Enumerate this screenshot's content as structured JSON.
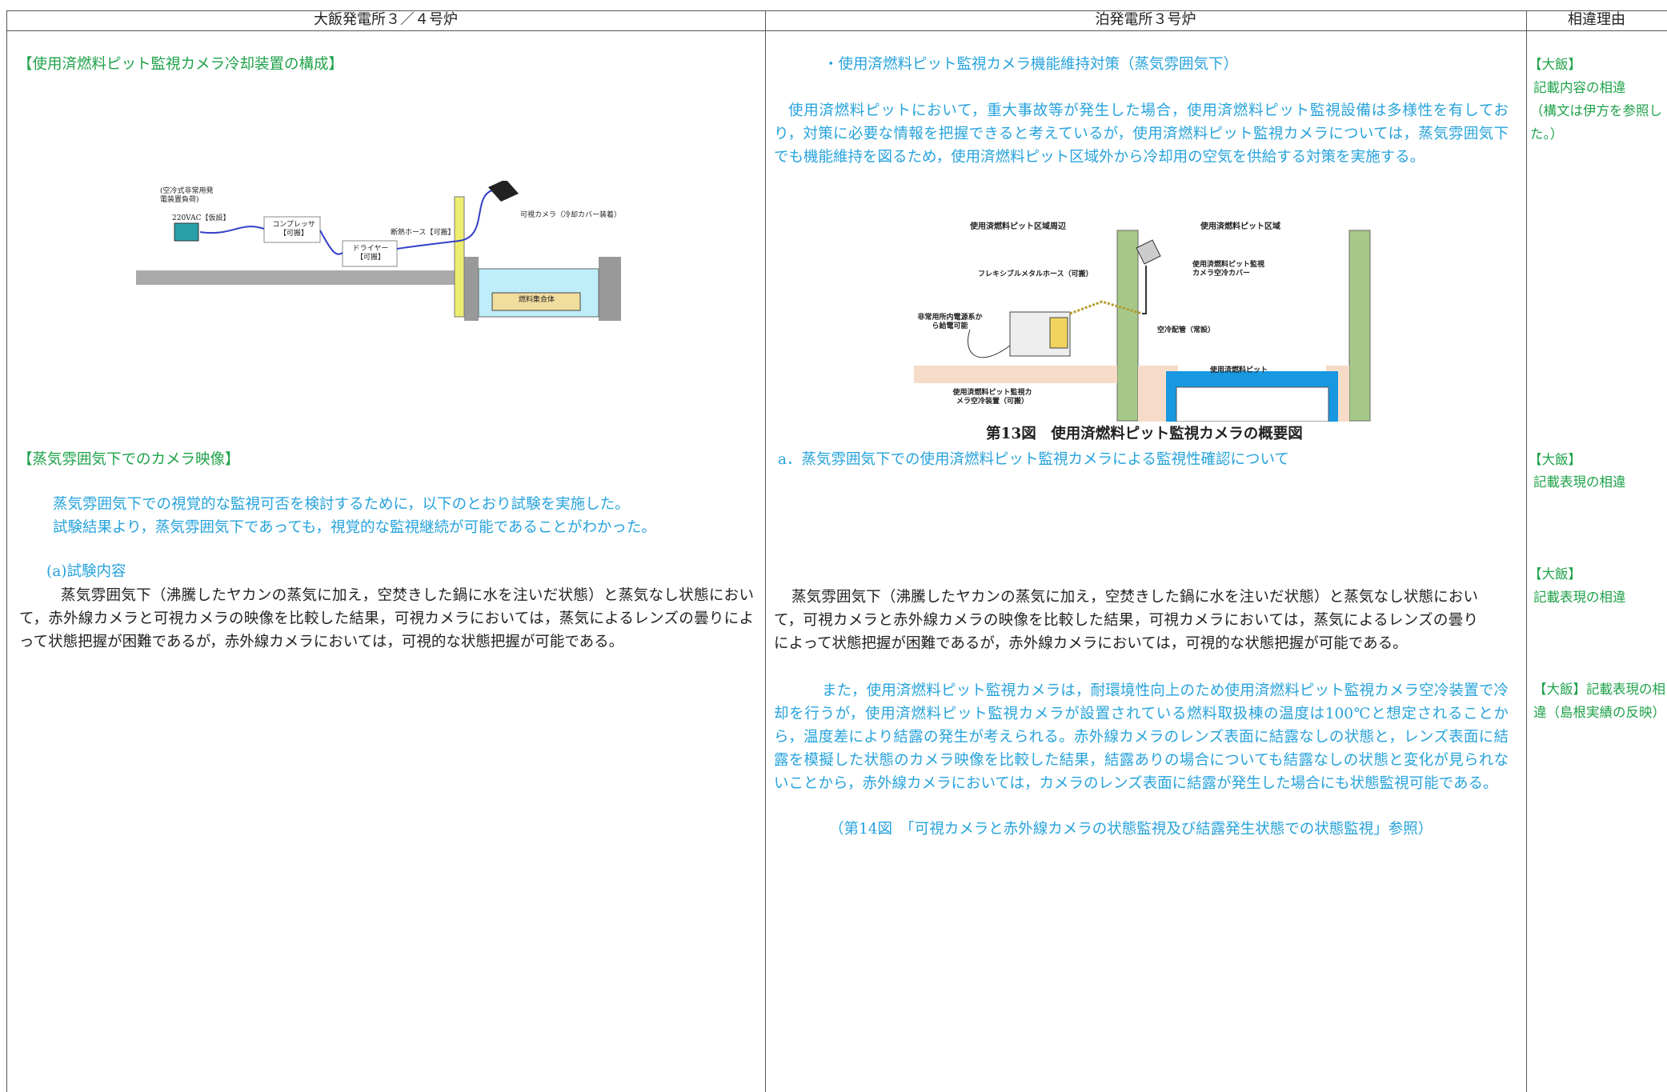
{
  "header": {
    "col1": "大飯発電所３／４号炉",
    "col2": "泊発電所３号炉",
    "col3": "相違理由"
  },
  "left": {
    "heading1": "【使用済燃料ピット監視カメラ冷却装置の構成】",
    "figure": {
      "power": "(空冷式非常用発電装置負荷)",
      "outlet": "220VAC【仮設】",
      "compressor": "コンプレッサ【可搬】",
      "dryer": "ドライヤー【可搬】",
      "hose": "断熱ホース【可搬】",
      "camera": "可視カメラ（冷却カバー装着）",
      "fuel": "燃料集合体"
    },
    "heading2": "【蒸気雰囲気下でのカメラ映像】",
    "intro": [
      "蒸気雰囲気下での視覚的な監視可否を検討するために，以下のとおり試験を実施した。",
      "試験結果より，蒸気雰囲気下であっても，視覚的な監視継続が可能であることがわかった。"
    ],
    "subheading": "(a)試験内容",
    "body": "蒸気雰囲気下（沸騰したヤカンの蒸気に加え，空焚きした鍋に水を注いだ状態）と蒸気なし状態において，赤外線カメラと可視カメラの映像を比較した結果，可視カメラにおいては，蒸気によるレンズの曇りによって状態把握が困難であるが，赤外線カメラにおいては，可視的な状態把握が可能である。"
  },
  "middle": {
    "bullet": "・使用済燃料ピット監視カメラ機能維持対策（蒸気雰囲気下）",
    "para1": "使用済燃料ピットにおいて，重大事故等が発生した場合，使用済燃料ピット監視設備は多様性を有しており，対策に必要な情報を把握できると考えているが，使用済燃料ピット監視カメラについては，蒸気雰囲気下でも機能維持を図るため，使用済燃料ピット区域外から冷却用の空気を供給する対策を実施する。",
    "figure": {
      "area_outside": "使用済燃料ピット区域周辺",
      "area_inside": "使用済燃料ピット区域",
      "cover": "使用済燃料ピット監視カメラ空冷カバー",
      "hose": "フレキシブルメタルホース（可搬）",
      "power": "非常用所内電源系から給電可能",
      "pipe": "空冷配管（常設）",
      "pit": "使用済燃料ピット",
      "device": "使用済燃料ピット監視カメラ空冷装置（可搬）"
    },
    "caption": "第13図　使用済燃料ピット監視カメラの概要図",
    "item_a": "a．蒸気雰囲気下での使用済燃料ピット監視カメラによる監視性確認について",
    "para2": "蒸気雰囲気下（沸騰したヤカンの蒸気に加え，空焚きした鍋に水を注いだ状態）と蒸気なし状態において，可視カメラと赤外線カメラの映像を比較した結果，可視カメラにおいては，蒸気によるレンズの曇りによって状態把握が困難であるが，赤外線カメラにおいては，可視的な状態把握が可能である。",
    "para3": "また，使用済燃料ピット監視カメラは，耐環境性向上のため使用済燃料ピット監視カメラ空冷装置で冷却を行うが，使用済燃料ピット監視カメラが設置されている燃料取扱棟の温度は100℃と想定されることから，温度差により結露の発生が考えられる。赤外線カメラのレンズ表面に結露なしの状態と，レンズ表面に結露を模擬した状態のカメラ映像を比較した結果，結露ありの場合についても結露なしの状態と変化が見られないことから，赤外線カメラにおいては，カメラのレンズ表面に結露が発生した場合にも状態監視可能である。",
    "reference": "（第14図　「可視カメラと赤外線カメラの状態監視及び結露発生状態での状態監視」参照）"
  },
  "right": {
    "note1": {
      "tag": "【大飯】",
      "text": "記載内容の相違",
      "detail": "（構文は伊方を参照した。）"
    },
    "note2": {
      "tag": "【大飯】",
      "text": "記載表現の相違"
    },
    "note3": {
      "tag": "【大飯】",
      "text": "記載表現の相違"
    },
    "note4": {
      "text": "【大飯】記載表現の相違（島根実績の反映）"
    }
  }
}
